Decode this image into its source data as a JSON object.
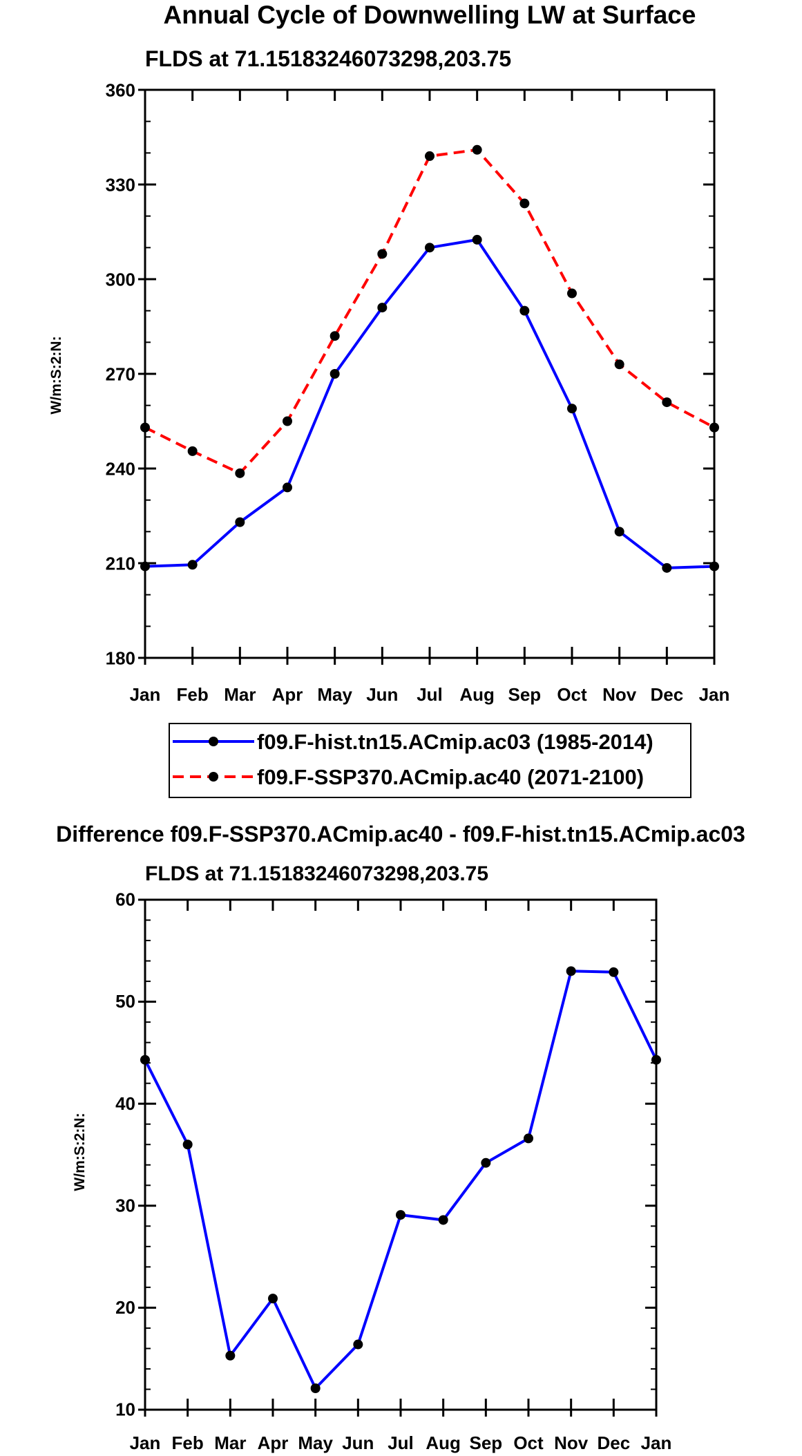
{
  "chart_data": [
    {
      "type": "line",
      "title": "Annual Cycle of Downwelling LW at Surface",
      "subtitle": "FLDS at 71.15183246073298,203.75",
      "xlabel": "",
      "ylabel": "W/m:S:2:N:",
      "categories": [
        "Jan",
        "Feb",
        "Mar",
        "Apr",
        "May",
        "Jun",
        "Jul",
        "Aug",
        "Sep",
        "Oct",
        "Nov",
        "Dec",
        "Jan"
      ],
      "ylim": [
        180,
        360
      ],
      "yticks": [
        180,
        210,
        240,
        270,
        300,
        330,
        360
      ],
      "series": [
        {
          "name": "f09.F-hist.tn15.ACmip.ac03 (1985-2014)",
          "color": "#0000ff",
          "dash": "solid",
          "values": [
            209,
            209.5,
            223,
            234,
            270,
            291,
            310,
            312.5,
            290,
            259,
            220,
            208.5,
            209
          ]
        },
        {
          "name": "f09.F-SSP370.ACmip.ac40 (2071-2100)",
          "color": "#ff0000",
          "dash": "dashed",
          "values": [
            253,
            245.5,
            238.5,
            255,
            282,
            308,
            339,
            341,
            324,
            295.5,
            273,
            261,
            253
          ]
        }
      ],
      "legend": "below"
    },
    {
      "type": "line",
      "title": "Difference f09.F-SSP370.ACmip.ac40 - f09.F-hist.tn15.ACmip.ac03",
      "subtitle": "FLDS at 71.15183246073298,203.75",
      "xlabel": "",
      "ylabel": "W/m:S:2:N:",
      "categories": [
        "Jan",
        "Feb",
        "Mar",
        "Apr",
        "May",
        "Jun",
        "Jul",
        "Aug",
        "Sep",
        "Oct",
        "Nov",
        "Dec",
        "Jan"
      ],
      "ylim": [
        10,
        60
      ],
      "yticks": [
        10,
        20,
        30,
        40,
        50,
        60
      ],
      "series": [
        {
          "name": "Difference",
          "color": "#0000ff",
          "dash": "solid",
          "values": [
            44.3,
            36,
            15.3,
            20.9,
            12.1,
            16.4,
            29.1,
            28.6,
            34.2,
            36.6,
            53,
            52.9,
            44.3
          ]
        }
      ]
    }
  ]
}
